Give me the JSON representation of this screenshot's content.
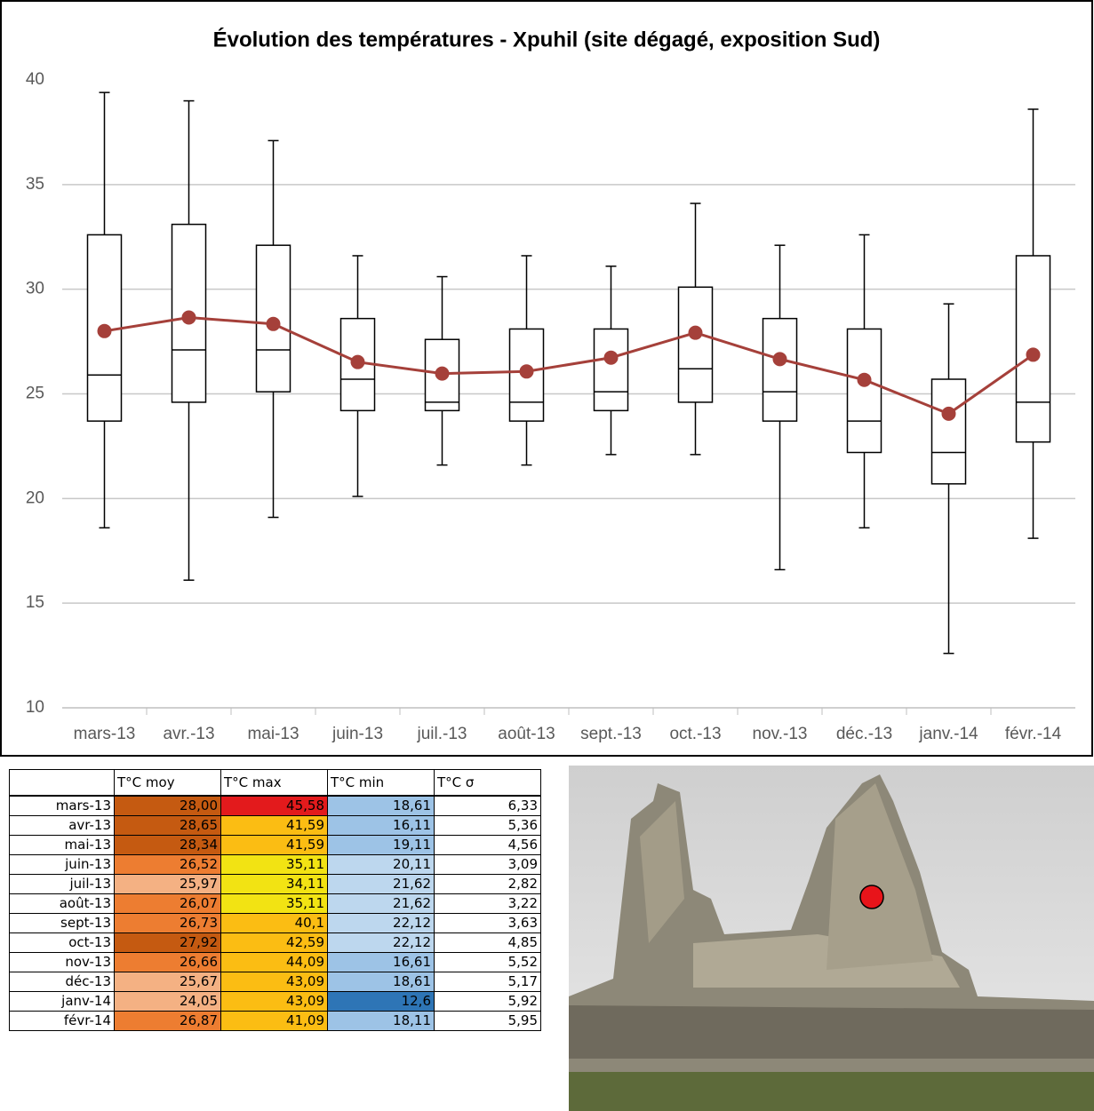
{
  "chart_data": {
    "type": "box",
    "title": "Évolution des températures - Xpuhil (site dégagé, exposition Sud)",
    "categories": [
      "mars-13",
      "avr.-13",
      "mai-13",
      "juin-13",
      "juil.-13",
      "août-13",
      "sept.-13",
      "oct.-13",
      "nov.-13",
      "déc.-13",
      "janv.-14",
      "févr.-14"
    ],
    "low": [
      18.6,
      16.1,
      19.1,
      20.1,
      21.6,
      21.6,
      22.1,
      22.1,
      16.6,
      18.6,
      12.6,
      18.1
    ],
    "q1": [
      23.7,
      24.6,
      25.1,
      24.2,
      24.2,
      23.7,
      24.2,
      24.6,
      23.7,
      22.2,
      20.7,
      22.7
    ],
    "median": [
      25.9,
      27.1,
      27.1,
      25.7,
      24.6,
      24.6,
      25.1,
      26.2,
      25.1,
      23.7,
      22.2,
      24.6
    ],
    "q3": [
      32.6,
      33.1,
      32.1,
      28.6,
      27.6,
      28.1,
      28.1,
      30.1,
      28.6,
      28.1,
      25.7,
      31.6
    ],
    "high": [
      39.4,
      39.0,
      37.1,
      31.6,
      30.6,
      31.6,
      31.1,
      34.1,
      32.1,
      32.6,
      29.3,
      38.6
    ],
    "box_color": "#000000",
    "mean": {
      "color": "#a5403a",
      "values": [
        28.0,
        28.65,
        28.34,
        26.52,
        25.97,
        26.07,
        26.73,
        27.92,
        26.66,
        25.67,
        24.05,
        26.87
      ]
    },
    "ylim": [
      10,
      40
    ],
    "yticks": [
      10,
      15,
      20,
      25,
      30,
      35,
      40
    ],
    "grid": true
  },
  "table": {
    "header": [
      "T°C moy",
      "T°C max",
      "T°C min",
      "T°C σ"
    ],
    "rows": [
      [
        "mars-13",
        "28,00",
        "45,58",
        "18,61",
        "6,33"
      ],
      [
        "avr-13",
        "28,65",
        "41,59",
        "16,11",
        "5,36"
      ],
      [
        "mai-13",
        "28,34",
        "41,59",
        "19,11",
        "4,56"
      ],
      [
        "juin-13",
        "26,52",
        "35,11",
        "20,11",
        "3,09"
      ],
      [
        "juil-13",
        "25,97",
        "34,11",
        "21,62",
        "2,82"
      ],
      [
        "août-13",
        "26,07",
        "35,11",
        "21,62",
        "3,22"
      ],
      [
        "sept-13",
        "26,73",
        "40,1",
        "22,12",
        "3,63"
      ],
      [
        "oct-13",
        "27,92",
        "42,59",
        "22,12",
        "4,85"
      ],
      [
        "nov-13",
        "26,66",
        "44,09",
        "16,61",
        "5,52"
      ],
      [
        "déc-13",
        "25,67",
        "43,09",
        "18,61",
        "5,17"
      ],
      [
        "janv-14",
        "24,05",
        "43,09",
        "12,6",
        "5,92"
      ],
      [
        "févr-14",
        "26,87",
        "41,09",
        "18,11",
        "5,95"
      ]
    ],
    "colors": [
      [
        "#c55a11",
        "#e31a1c",
        "#9dc3e6"
      ],
      [
        "#c55a11",
        "#fbbd13",
        "#9dc3e6"
      ],
      [
        "#c55a11",
        "#fbbd13",
        "#9dc3e6"
      ],
      [
        "#ed7d31",
        "#f2e313",
        "#bdd7ee"
      ],
      [
        "#f4b183",
        "#f2e313",
        "#bdd7ee"
      ],
      [
        "#ed7d31",
        "#f2e313",
        "#bdd7ee"
      ],
      [
        "#ed7d31",
        "#fbbd13",
        "#bdd7ee"
      ],
      [
        "#c55a11",
        "#fbbd13",
        "#bdd7ee"
      ],
      [
        "#ed7d31",
        "#fbbd13",
        "#9dc3e6"
      ],
      [
        "#f4b183",
        "#fbbd13",
        "#9dc3e6"
      ],
      [
        "#f4b183",
        "#fbbd13",
        "#2e75b6"
      ],
      [
        "#ed7d31",
        "#fbbd13",
        "#9dc3e6"
      ]
    ]
  }
}
